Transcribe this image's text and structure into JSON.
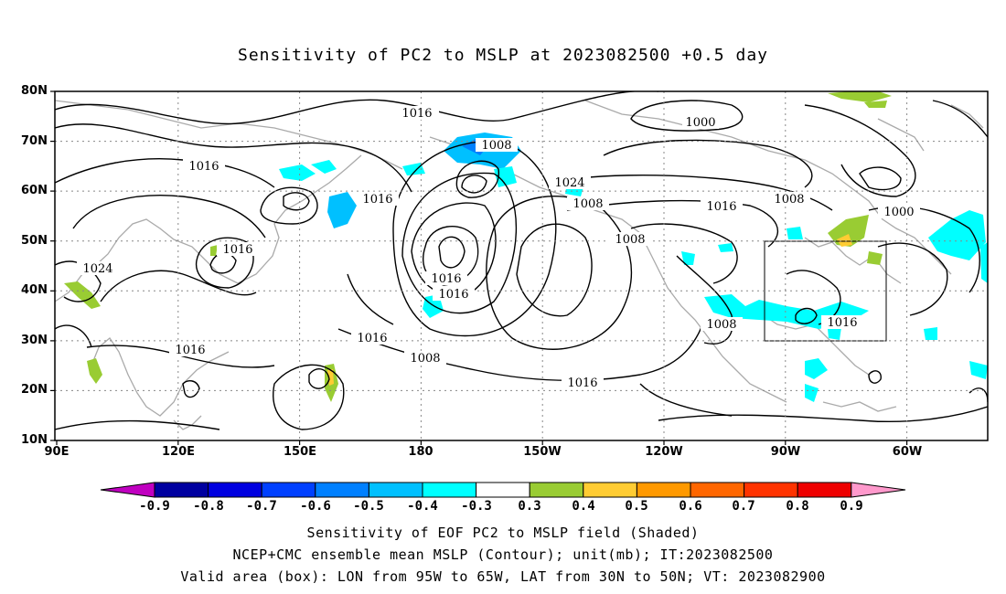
{
  "title": "Sensitivity of PC2 to MSLP at 2023082500 +0.5 day",
  "lat_labels": [
    "80N",
    "70N",
    "60N",
    "50N",
    "40N",
    "30N",
    "20N",
    "10N"
  ],
  "lon_labels": [
    "90E",
    "120E",
    "150E",
    "180",
    "150W",
    "120W",
    "90W",
    "60W"
  ],
  "contour_labels": [
    "1016",
    "1000",
    "1008",
    "1016",
    "1024",
    "1016",
    "1008",
    "1008",
    "1016",
    "1000",
    "1008",
    "1016",
    "1024",
    "1016",
    "1016",
    "1008",
    "1016",
    "1016",
    "1016",
    "1008"
  ],
  "colorbar": {
    "labels": [
      "-0.9",
      "-0.8",
      "-0.7",
      "-0.6",
      "-0.5",
      "-0.4",
      "-0.3",
      "0.3",
      "0.4",
      "0.5",
      "0.6",
      "0.7",
      "0.8",
      "0.9"
    ],
    "colors": [
      "#c000c0",
      "#0000a0",
      "#0000e0",
      "#0040ff",
      "#0080ff",
      "#00c0ff",
      "#00ffff",
      "#ffffff",
      "#99cc33",
      "#ffcc33",
      "#ff9900",
      "#ff6600",
      "#ff3300",
      "#ee0000",
      "#ff99cc"
    ]
  },
  "caption": {
    "line1": "Sensitivity of EOF PC2 to MSLP field (Shaded)",
    "line2": "NCEP+CMC ensemble mean MSLP (Contour); unit(mb); IT:2023082500",
    "line3": "Valid area (box): LON from 95W to 65W, LAT from 30N to 50N; VT: 2023082900"
  }
}
